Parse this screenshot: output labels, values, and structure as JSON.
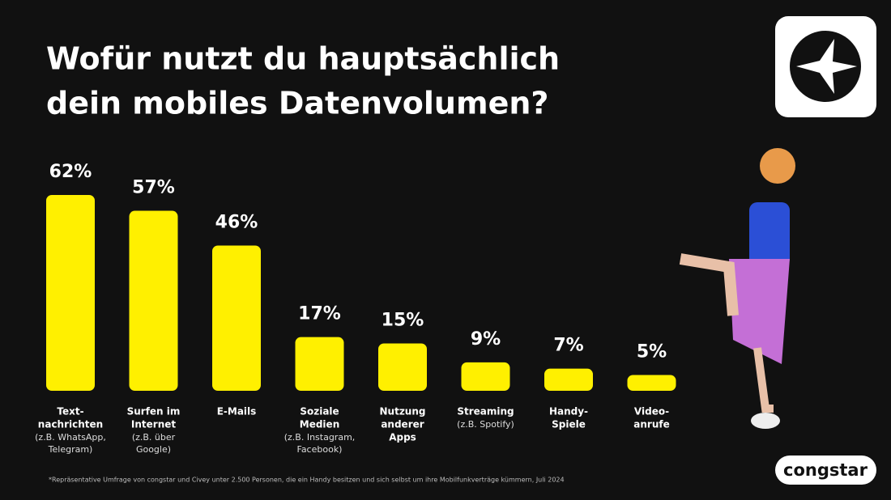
{
  "chart_data": {
    "type": "bar",
    "title": [
      "Wofür nutzt du hauptsächlich",
      "dein mobiles Datenvolumen?"
    ],
    "categories": [
      [
        "Text-",
        "nachrichten"
      ],
      [
        "Surfen im",
        "Internet"
      ],
      [
        "E-Mails"
      ],
      [
        "Soziale",
        "Medien"
      ],
      [
        "Nutzung",
        "anderer",
        "Apps"
      ],
      [
        "Streaming"
      ],
      [
        "Handy-",
        "Spiele"
      ],
      [
        "Video-",
        "anrufe"
      ]
    ],
    "category_notes": [
      [
        "(z.B. WhatsApp,",
        "Telegram)"
      ],
      [
        "(z.B. über",
        "Google)"
      ],
      [],
      [
        "(z.B. Instagram,",
        "Facebook)"
      ],
      [],
      [
        "(z.B. Spotify)"
      ],
      [],
      []
    ],
    "values": [
      62,
      57,
      46,
      17,
      15,
      9,
      7,
      5
    ],
    "value_labels": [
      "62%",
      "57%",
      "46%",
      "17%",
      "15%",
      "9%",
      "7%",
      "5%"
    ],
    "color": "#fff000",
    "footnote": "*Repräsentative Umfrage von congstar und Civey unter 2.500 Personen, die ein Handy besitzen und sich selbst um ihre Mobilfunkverträge kümmern, Juli 2024",
    "brand": "congstar"
  }
}
